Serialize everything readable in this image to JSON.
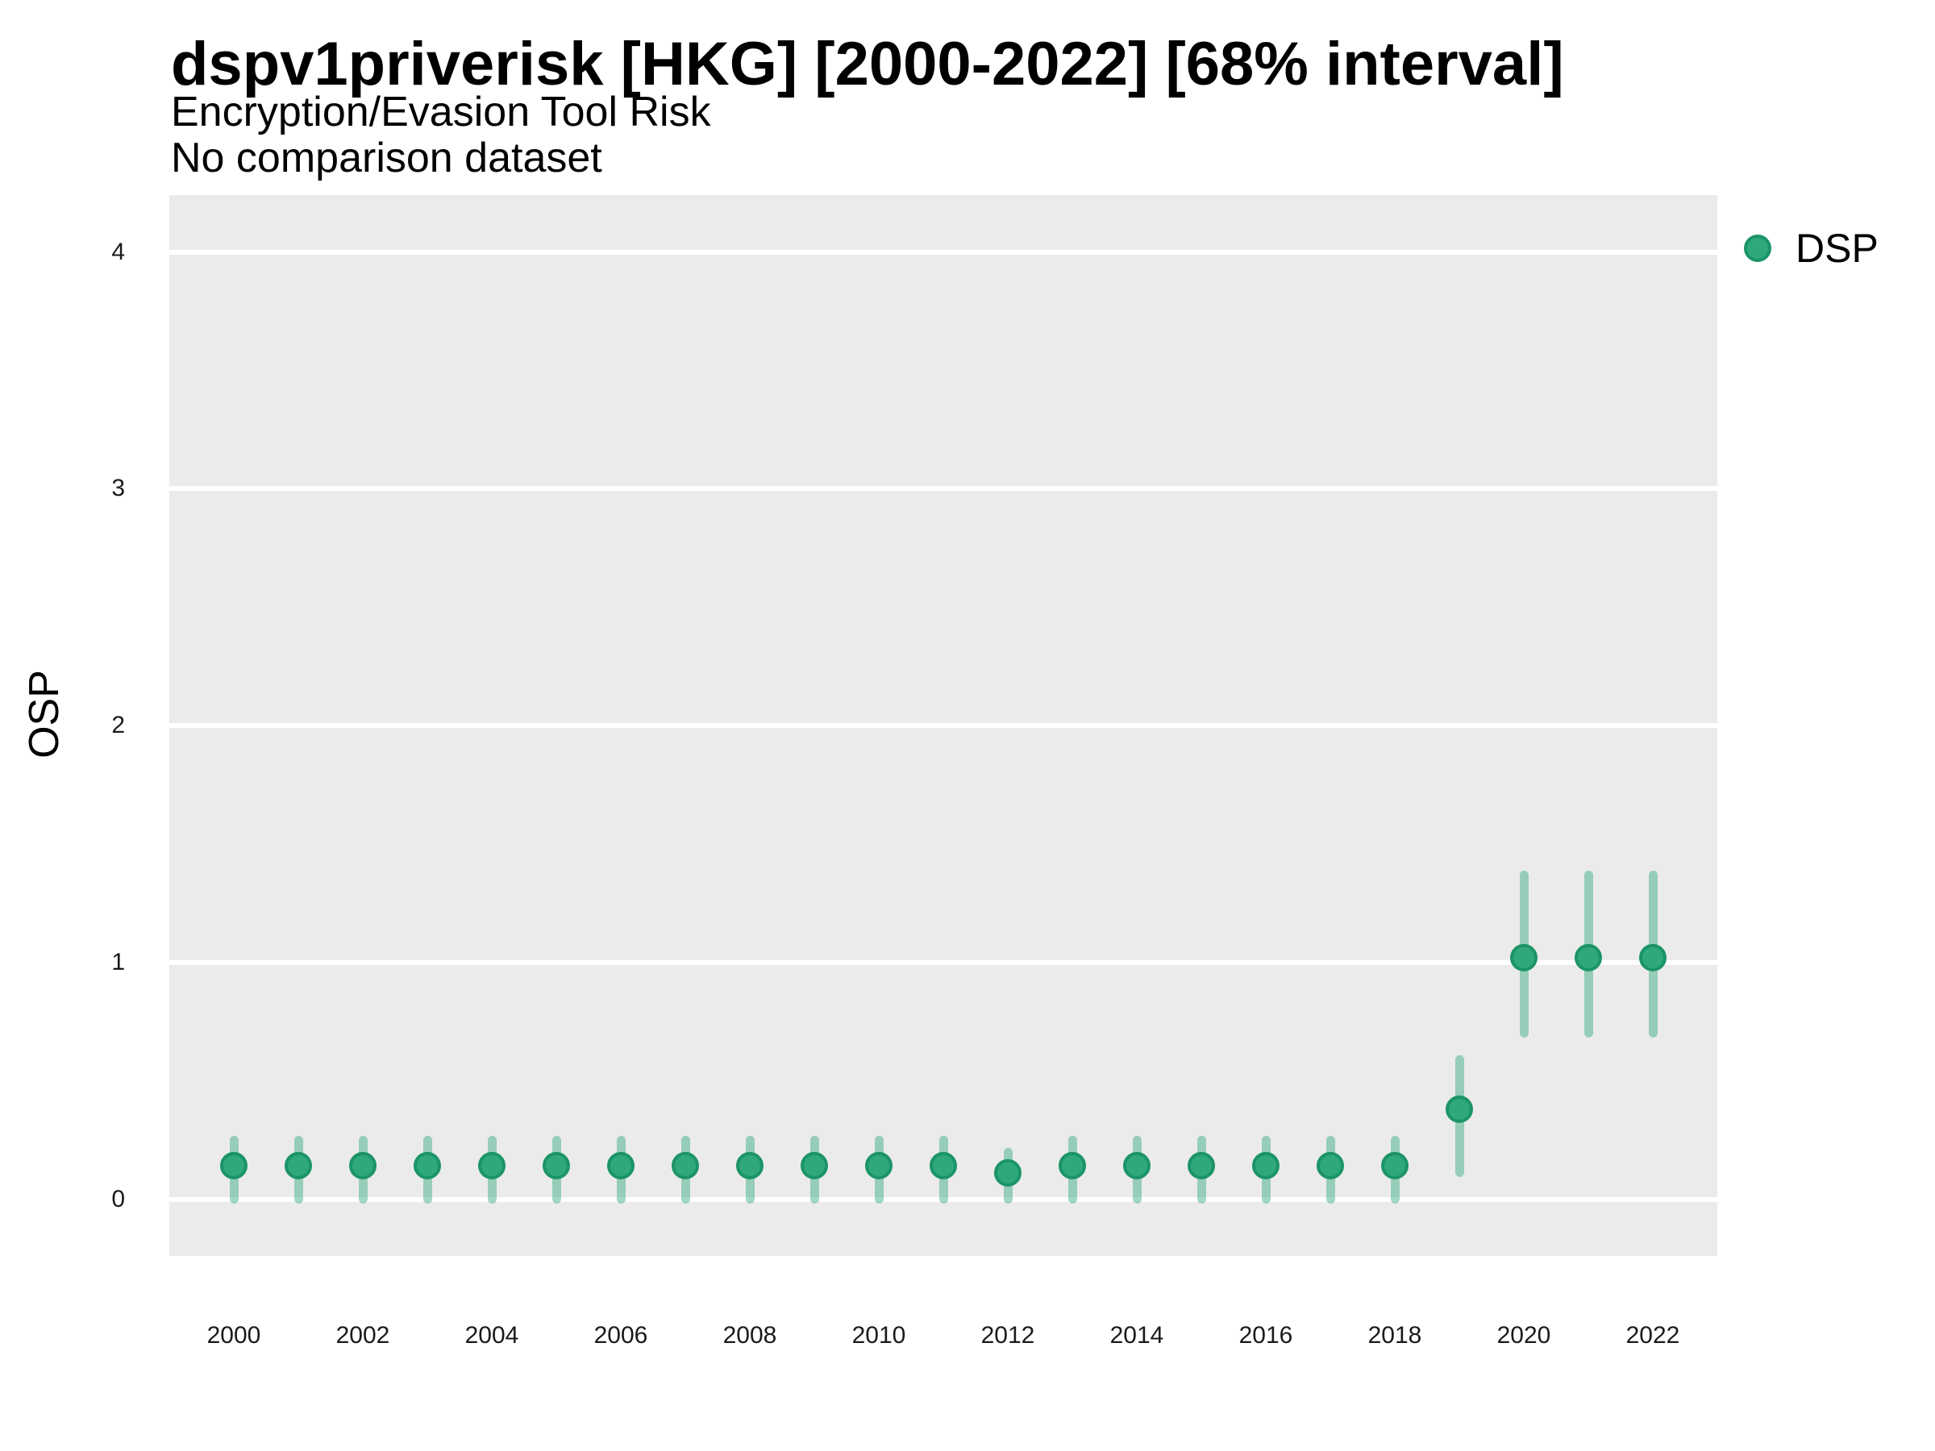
{
  "header": {
    "title": "dspv1priverisk [HKG] [2000-2022] [68% interval]",
    "subtitle_line1": "Encryption/Evasion Tool Risk",
    "subtitle_line2": "No comparison dataset"
  },
  "legend": {
    "position": "right",
    "entries": [
      {
        "label": "DSP",
        "symbol": "circle"
      }
    ]
  },
  "chart_data": {
    "type": "scatter",
    "title": "dspv1priverisk [HKG] [2000-2022] [68% interval]",
    "subtitle": "Encryption/Evasion Tool Risk",
    "annotation": "No comparison dataset",
    "xlabel": "",
    "ylabel": "OSP",
    "interval_level": "68%",
    "grid": "major horizontal white gridlines on gray panel",
    "legend_position": "right",
    "x_ticks": [
      2000,
      2002,
      2004,
      2006,
      2008,
      2010,
      2012,
      2014,
      2016,
      2018,
      2020,
      2022
    ],
    "y_ticks": [
      0,
      1,
      2,
      3,
      4
    ],
    "xlim": [
      1999,
      2023
    ],
    "ylim": [
      -0.24,
      4.24
    ],
    "series": [
      {
        "name": "DSP",
        "x": [
          2000,
          2001,
          2002,
          2003,
          2004,
          2005,
          2006,
          2007,
          2008,
          2009,
          2010,
          2011,
          2012,
          2013,
          2014,
          2015,
          2016,
          2017,
          2018,
          2019,
          2020,
          2021,
          2022
        ],
        "estimate": [
          0.14,
          0.14,
          0.14,
          0.14,
          0.14,
          0.14,
          0.14,
          0.14,
          0.14,
          0.14,
          0.14,
          0.14,
          0.11,
          0.14,
          0.14,
          0.14,
          0.14,
          0.14,
          0.14,
          0.38,
          1.02,
          1.02,
          1.02
        ],
        "lower": [
          0,
          0,
          0,
          0,
          0,
          0,
          0,
          0,
          0,
          0,
          0,
          0,
          0,
          0,
          0,
          0,
          0,
          0,
          0,
          0.11,
          0.7,
          0.7,
          0.7
        ],
        "upper": [
          0.25,
          0.25,
          0.25,
          0.25,
          0.25,
          0.25,
          0.25,
          0.25,
          0.25,
          0.25,
          0.25,
          0.25,
          0.2,
          0.25,
          0.25,
          0.25,
          0.25,
          0.25,
          0.25,
          0.59,
          1.37,
          1.37,
          1.37
        ]
      }
    ],
    "colors": {
      "point_fill": "#2FA87C",
      "point_stroke": "#1B9468",
      "interval_bar": "rgba(47,168,124,0.45)",
      "panel_background": "#EBEBEB",
      "gridline": "#FFFFFF"
    }
  }
}
